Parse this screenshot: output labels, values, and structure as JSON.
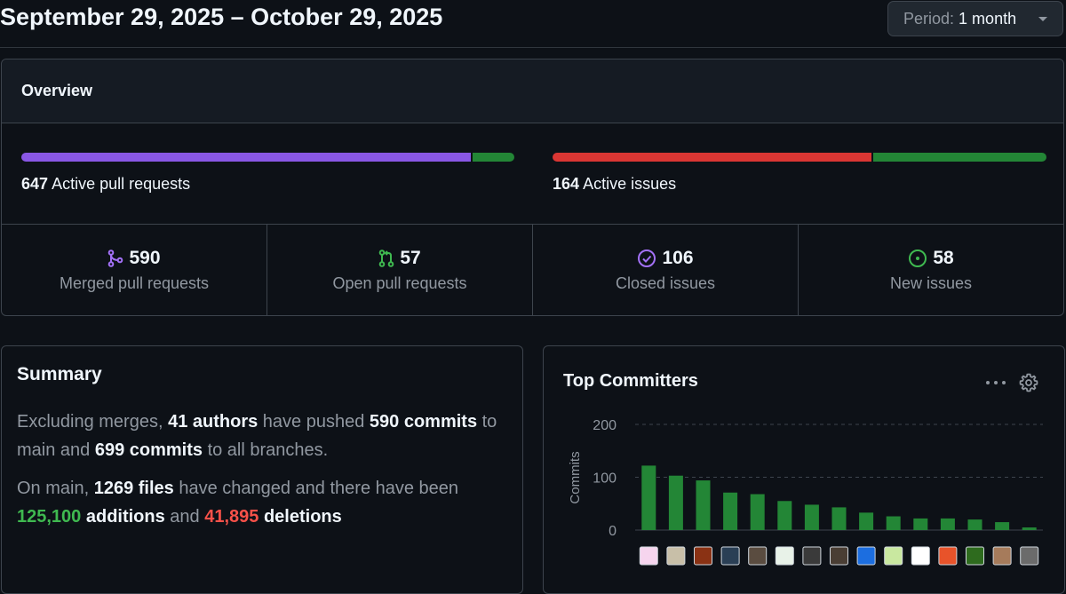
{
  "header": {
    "date_range": "September 29, 2025 – October 29, 2025",
    "period_label": "Period:",
    "period_value": "1 month"
  },
  "overview": {
    "title": "Overview",
    "pull_requests": {
      "count": "647",
      "label": "Active pull requests",
      "merged_fraction": 0.912,
      "colors": {
        "merged": "#8957e5",
        "open": "#238636"
      }
    },
    "issues": {
      "count": "164",
      "label": "Active issues",
      "closed_fraction": 0.646,
      "colors": {
        "closed": "#da3633",
        "new": "#238636"
      }
    },
    "stats": [
      {
        "value": "590",
        "label": "Merged pull requests",
        "icon": "git-merge-icon",
        "color": "#a371f7"
      },
      {
        "value": "57",
        "label": "Open pull requests",
        "icon": "git-pull-request-icon",
        "color": "#3fb950"
      },
      {
        "value": "106",
        "label": "Closed issues",
        "icon": "issue-closed-icon",
        "color": "#a371f7"
      },
      {
        "value": "58",
        "label": "New issues",
        "icon": "issue-opened-icon",
        "color": "#3fb950"
      }
    ]
  },
  "summary": {
    "title": "Summary",
    "p1": {
      "t1": "Excluding merges, ",
      "authors": "41 authors",
      "t2": " have pushed ",
      "commits_main": "590 commits",
      "t3": " to main and ",
      "commits_all": "699 commits",
      "t4": " to all branches."
    },
    "p2": {
      "t1": "On main, ",
      "files": "1269 files",
      "t2": " have changed and there have been ",
      "additions_num": "125,100",
      "additions_word": " additions",
      "t3": " and ",
      "deletions_num": "41,895",
      "deletions_word": " deletions"
    }
  },
  "top_committers": {
    "title": "Top Committers",
    "more_icon": "kebab-horizontal-icon",
    "settings_icon": "gear-icon"
  },
  "chart_data": {
    "type": "bar",
    "ylabel": "Commits",
    "xlabel": "",
    "ylim": [
      0,
      200
    ],
    "yticks": [
      "200",
      "100",
      "0"
    ],
    "ytick_values": [
      200,
      100,
      0
    ],
    "grid": true,
    "bar_color": "#238636",
    "values": [
      122,
      103,
      94,
      71,
      68,
      55,
      48,
      43,
      33,
      26,
      22,
      22,
      20,
      15,
      5
    ],
    "avatar_colors": [
      "#f6d5ee",
      "#c8bfa8",
      "#8a3214",
      "#2a3f55",
      "#5a4c40",
      "#e8f2e8",
      "#3a3a3a",
      "#4a3e34",
      "#1c6ee0",
      "#c9e8a0",
      "#ffffff",
      "#e8532a",
      "#2e6b1e",
      "#a67b5b",
      "#6b6b6b"
    ]
  }
}
